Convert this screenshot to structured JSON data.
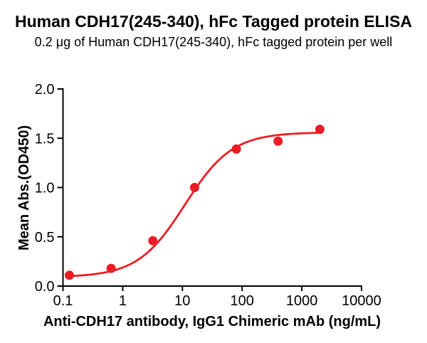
{
  "title": "Human CDH17(245-340), hFc Tagged protein ELISA",
  "subtitle": "0.2 μg of Human CDH17(245-340), hFc tagged protein per well",
  "chart_data": {
    "type": "scatter",
    "title": "Human CDH17(245-340), hFc Tagged protein ELISA",
    "subtitle": "0.2 μg of Human CDH17(245-340), hFc tagged protein per well",
    "xlabel": "Anti-CDH17 antibody, IgG1 Chimeric mAb (ng/mL)",
    "ylabel": "Mean Abs.(OD450)",
    "x_scale": "log10",
    "xlim": [
      0.1,
      10000
    ],
    "ylim": [
      0.0,
      2.0
    ],
    "grid": false,
    "legend": null,
    "x_ticks": [
      0.1,
      1,
      10,
      100,
      1000,
      10000
    ],
    "x_tick_labels": [
      "0.1",
      "1",
      "10",
      "100",
      "1000",
      "10000"
    ],
    "y_ticks": [
      0.0,
      0.5,
      1.0,
      1.5,
      2.0
    ],
    "y_tick_labels": [
      "0.0",
      "0.5",
      "1.0",
      "1.5",
      "2.0"
    ],
    "series": [
      {
        "name": "Anti-CDH17 IgG1 Chimeric mAb",
        "points": [
          {
            "x": 0.128,
            "y": 0.11
          },
          {
            "x": 0.64,
            "y": 0.18
          },
          {
            "x": 3.2,
            "y": 0.46
          },
          {
            "x": 16,
            "y": 1.0
          },
          {
            "x": 80,
            "y": 1.39
          },
          {
            "x": 400,
            "y": 1.47
          },
          {
            "x": 2000,
            "y": 1.59
          }
        ],
        "curve_fit": {
          "model": "4PL",
          "bottom": 0.09,
          "top": 1.56,
          "ec50": 11,
          "hill": 1.1
        }
      }
    ],
    "colors": {
      "curve": "#ED1C24",
      "marker": "#ED1C24",
      "axis": "#000000",
      "text": "#000000",
      "background": "#FFFFFF"
    },
    "marker": {
      "shape": "circle",
      "radius": 6.5
    }
  }
}
